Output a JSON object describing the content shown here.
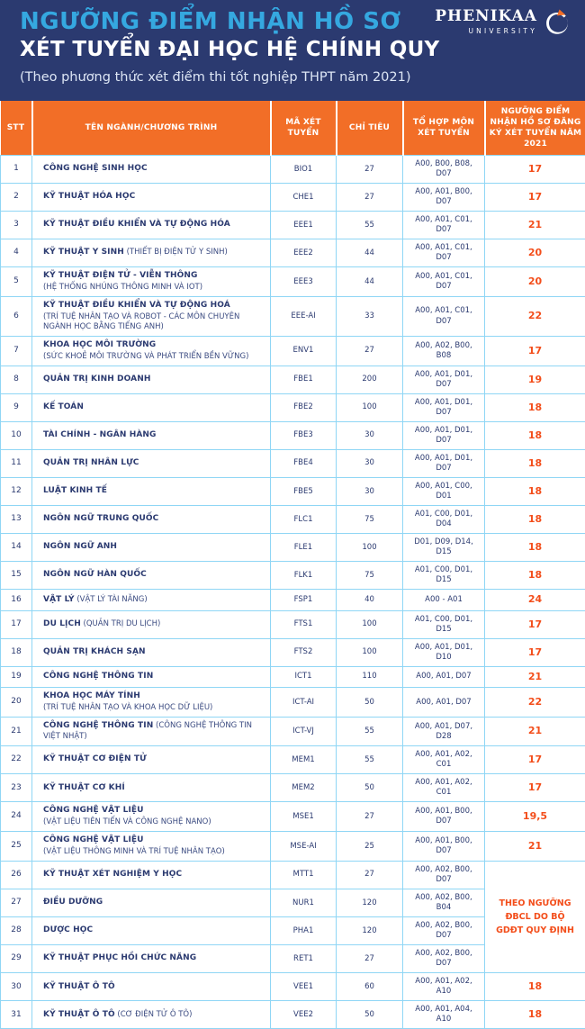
{
  "colors": {
    "banner_bg": "#2B3A70",
    "title_accent": "#35A8E0",
    "header_orange": "#F26E27",
    "score_orange": "#F34E1B",
    "grid_blue": "#8FD6F5",
    "body_text_navy": "#2B3A70"
  },
  "banner": {
    "title_line1": "NGƯỠNG ĐIỂM NHẬN HỒ SƠ",
    "title_line2": "XÉT TUYỂN ĐẠI HỌC HỆ CHÍNH QUY",
    "tagline": "(Theo phương thức xét điểm thi tốt nghiệp THPT năm 2021)",
    "logo": {
      "name": "PHENIKAA",
      "subname": "UNIVERSITY",
      "icon": "phenikaa-swirl-icon"
    }
  },
  "table": {
    "columns": [
      "STT",
      "TÊN NGÀNH/CHƯƠNG TRÌNH",
      "MÃ XÉT TUYỂN",
      "CHỈ TIÊU",
      "TỔ HỢP MÔN XÉT TUYỂN",
      "NGƯỠNG ĐIỂM NHẬN HỒ SƠ ĐĂNG KÝ XÉT TUYỂN NĂM 2021"
    ],
    "merged_score_text": "THEO NGƯỠNG ĐBCL DO BỘ GDĐT QUY ĐỊNH",
    "rows": [
      {
        "stt": "1",
        "name": "CÔNG NGHỆ SINH HỌC",
        "sub": "",
        "sub_layout": "none",
        "code": "BIO1",
        "quota": "27",
        "combo": "A00, B00, B08, D07",
        "score": "17"
      },
      {
        "stt": "2",
        "name": "KỸ THUẬT HÓA HỌC",
        "sub": "",
        "sub_layout": "none",
        "code": "CHE1",
        "quota": "27",
        "combo": "A00, A01, B00, D07",
        "score": "17"
      },
      {
        "stt": "3",
        "name": "KỸ THUẬT ĐIỀU KHIỂN VÀ TỰ ĐỘNG HÓA",
        "sub": "",
        "sub_layout": "none",
        "code": "EEE1",
        "quota": "55",
        "combo": "A00, A01, C01, D07",
        "score": "21"
      },
      {
        "stt": "4",
        "name": "KỸ THUẬT Y SINH",
        "sub": "(THIẾT BỊ ĐIỆN TỬ Y SINH)",
        "sub_layout": "inline",
        "code": "EEE2",
        "quota": "44",
        "combo": "A00, A01, C01, D07",
        "score": "20"
      },
      {
        "stt": "5",
        "name": "KỸ THUẬT ĐIỆN TỬ - VIỄN THÔNG",
        "sub": "(HỆ THỐNG NHÚNG THÔNG MINH VÀ IOT)",
        "sub_layout": "block",
        "code": "EEE3",
        "quota": "44",
        "combo": "A00, A01, C01, D07",
        "score": "20"
      },
      {
        "stt": "6",
        "name": "KỸ THUẬT ĐIỀU KHIỂN VÀ TỰ ĐỘNG HOÁ",
        "sub": "(TRÍ TUỆ NHÂN TẠO VÀ ROBOT - CÁC MÔN CHUYÊN NGÀNH HỌC BẰNG TIẾNG ANH)",
        "sub_layout": "block",
        "code": "EEE-AI",
        "quota": "33",
        "combo": "A00, A01, C01, D07",
        "score": "22"
      },
      {
        "stt": "7",
        "name": "KHOA HỌC MÔI TRƯỜNG",
        "sub": "(SỨC KHOẺ MÔI TRƯỜNG VÀ PHÁT TRIỂN BỀN VỮNG)",
        "sub_layout": "block",
        "code": "ENV1",
        "quota": "27",
        "combo": "A00, A02, B00, B08",
        "score": "17"
      },
      {
        "stt": "8",
        "name": "QUẢN TRỊ KINH DOANH",
        "sub": "",
        "sub_layout": "none",
        "code": "FBE1",
        "quota": "200",
        "combo": "A00, A01, D01, D07",
        "score": "19"
      },
      {
        "stt": "9",
        "name": "KẾ TOÁN",
        "sub": "",
        "sub_layout": "none",
        "code": "FBE2",
        "quota": "100",
        "combo": "A00, A01, D01, D07",
        "score": "18"
      },
      {
        "stt": "10",
        "name": "TÀI CHÍNH - NGÂN HÀNG",
        "sub": "",
        "sub_layout": "none",
        "code": "FBE3",
        "quota": "30",
        "combo": "A00, A01, D01, D07",
        "score": "18"
      },
      {
        "stt": "11",
        "name": "QUẢN TRỊ NHÂN LỰC",
        "sub": "",
        "sub_layout": "none",
        "code": "FBE4",
        "quota": "30",
        "combo": "A00, A01, D01, D07",
        "score": "18"
      },
      {
        "stt": "12",
        "name": "LUẬT KINH TẾ",
        "sub": "",
        "sub_layout": "none",
        "code": "FBE5",
        "quota": "30",
        "combo": "A00, A01, C00, D01",
        "score": "18"
      },
      {
        "stt": "13",
        "name": "NGÔN NGỮ TRUNG QUỐC",
        "sub": "",
        "sub_layout": "none",
        "code": "FLC1",
        "quota": "75",
        "combo": "A01, C00, D01, D04",
        "score": "18"
      },
      {
        "stt": "14",
        "name": "NGÔN NGỮ ANH",
        "sub": "",
        "sub_layout": "none",
        "code": "FLE1",
        "quota": "100",
        "combo": "D01, D09, D14, D15",
        "score": "18"
      },
      {
        "stt": "15",
        "name": "NGÔN NGỮ HÀN QUỐC",
        "sub": "",
        "sub_layout": "none",
        "code": "FLK1",
        "quota": "75",
        "combo": "A01, C00, D01, D15",
        "score": "18"
      },
      {
        "stt": "16",
        "name": "VẬT LÝ",
        "sub": "(VẬT LÝ TÀI NĂNG)",
        "sub_layout": "inline",
        "code": "FSP1",
        "quota": "40",
        "combo": "A00 - A01",
        "score": "24"
      },
      {
        "stt": "17",
        "name": "DU LỊCH",
        "sub": "(QUẢN TRỊ DU LỊCH)",
        "sub_layout": "inline",
        "code": "FTS1",
        "quota": "100",
        "combo": "A01, C00, D01, D15",
        "score": "17"
      },
      {
        "stt": "18",
        "name": "QUẢN TRỊ KHÁCH SẠN",
        "sub": "",
        "sub_layout": "none",
        "code": "FTS2",
        "quota": "100",
        "combo": "A00, A01, D01, D10",
        "score": "17"
      },
      {
        "stt": "19",
        "name": "CÔNG NGHỆ THÔNG TIN",
        "sub": "",
        "sub_layout": "none",
        "code": "ICT1",
        "quota": "110",
        "combo": "A00, A01, D07",
        "score": "21"
      },
      {
        "stt": "20",
        "name": "KHOA HỌC MÁY TÍNH",
        "sub": "(TRÍ TUỆ NHÂN TẠO VÀ KHOA HỌC DỮ LIỆU)",
        "sub_layout": "block",
        "code": "ICT-AI",
        "quota": "50",
        "combo": "A00, A01, D07",
        "score": "22"
      },
      {
        "stt": "21",
        "name": "CÔNG NGHỆ THÔNG TIN",
        "sub": "(CÔNG NGHỆ THÔNG TIN VIỆT NHẬT)",
        "sub_layout": "inline",
        "code": "ICT-VJ",
        "quota": "55",
        "combo": "A00, A01, D07, D28",
        "score": "21"
      },
      {
        "stt": "22",
        "name": "KỸ THUẬT CƠ ĐIỆN TỬ",
        "sub": "",
        "sub_layout": "none",
        "code": "MEM1",
        "quota": "55",
        "combo": "A00, A01, A02, C01",
        "score": "17"
      },
      {
        "stt": "23",
        "name": "KỸ THUẬT CƠ KHÍ",
        "sub": "",
        "sub_layout": "none",
        "code": "MEM2",
        "quota": "50",
        "combo": "A00, A01, A02, C01",
        "score": "17"
      },
      {
        "stt": "24",
        "name": "CÔNG NGHỆ VẬT LIỆU",
        "sub": "(VẬT LIỆU TIÊN TIẾN VÀ CÔNG NGHỆ NANO)",
        "sub_layout": "block",
        "code": "MSE1",
        "quota": "27",
        "combo": "A00, A01, B00, D07",
        "score": "19,5"
      },
      {
        "stt": "25",
        "name": "CÔNG NGHỆ VẬT LIỆU",
        "sub": "(VẬT LIỆU THÔNG MINH VÀ TRÍ TUỆ NHÂN TẠO)",
        "sub_layout": "block",
        "code": "MSE-AI",
        "quota": "25",
        "combo": "A00, A01, B00, D07",
        "score": "21"
      },
      {
        "stt": "26",
        "name": "KỸ THUẬT XÉT NGHIỆM Y HỌC",
        "sub": "",
        "sub_layout": "none",
        "code": "MTT1",
        "quota": "27",
        "combo": "A00, A02, B00, D07",
        "score": null,
        "merged_start": true
      },
      {
        "stt": "27",
        "name": "ĐIỀU DƯỠNG",
        "sub": "",
        "sub_layout": "none",
        "code": "NUR1",
        "quota": "120",
        "combo": "A00, A02, B00, B04",
        "score": null,
        "merged": true
      },
      {
        "stt": "28",
        "name": "DƯỢC HỌC",
        "sub": "",
        "sub_layout": "none",
        "code": "PHA1",
        "quota": "120",
        "combo": "A00, A02, B00, D07",
        "score": null,
        "merged": true
      },
      {
        "stt": "29",
        "name": "KỸ THUẬT PHỤC HỒI CHỨC NĂNG",
        "sub": "",
        "sub_layout": "none",
        "code": "RET1",
        "quota": "27",
        "combo": "A00, A02, B00, D07",
        "score": null,
        "merged": true
      },
      {
        "stt": "30",
        "name": "KỸ THUẬT Ô TÔ",
        "sub": "",
        "sub_layout": "none",
        "code": "VEE1",
        "quota": "60",
        "combo": "A00, A01, A02, A10",
        "score": "18"
      },
      {
        "stt": "31",
        "name": "KỸ THUẬT Ô TÔ",
        "sub": "(CƠ ĐIỆN TỬ Ô TÔ)",
        "sub_layout": "inline",
        "code": "VEE2",
        "quota": "50",
        "combo": "A00, A01, A04, A10",
        "score": "18"
      }
    ]
  }
}
